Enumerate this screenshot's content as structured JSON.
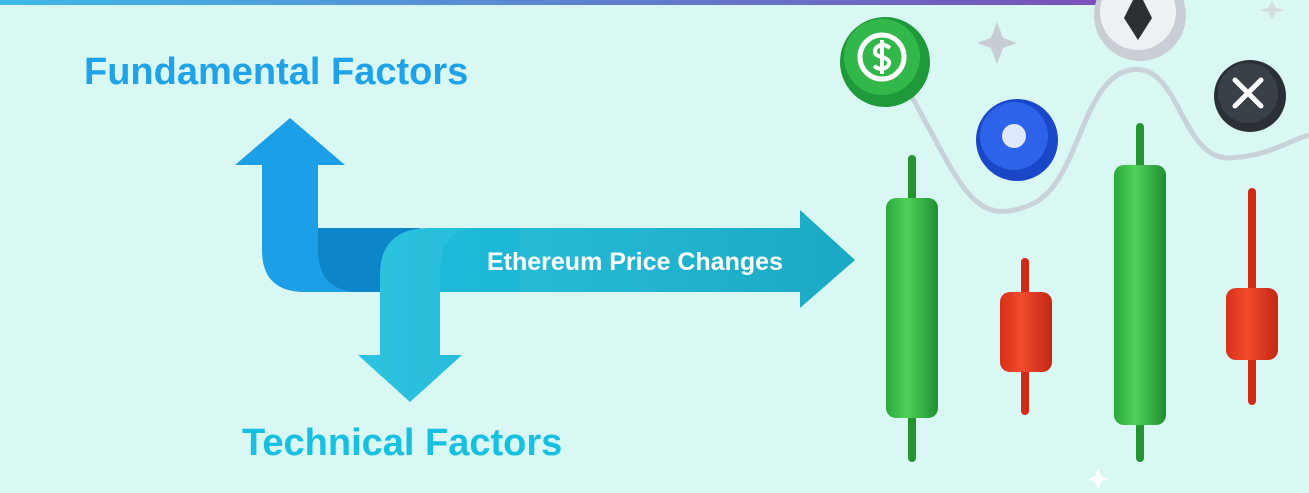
{
  "labels": {
    "top": "Fundamental Factors",
    "bottom": "Technical Factors",
    "arrow": "Ethereum Price Changes"
  }
}
